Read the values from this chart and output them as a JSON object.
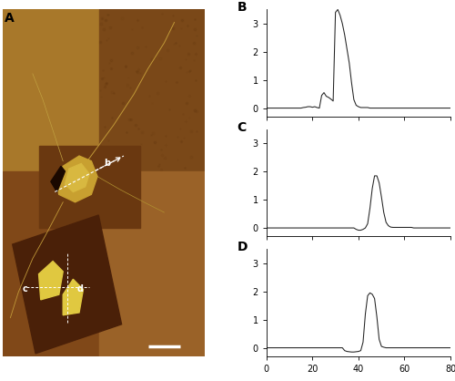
{
  "title_A": "A",
  "title_B": "B",
  "title_C": "C",
  "title_D": "D",
  "xlim": [
    0,
    80
  ],
  "ylim": [
    -0.3,
    3.5
  ],
  "yticks": [
    0,
    1,
    2,
    3
  ],
  "xticks": [
    0,
    20,
    40,
    60,
    80
  ],
  "line_color": "#222222",
  "profile_B_x": [
    0,
    1,
    2,
    3,
    4,
    5,
    6,
    7,
    8,
    9,
    10,
    11,
    12,
    13,
    14,
    15,
    16,
    17,
    18,
    19,
    20,
    21,
    22,
    23,
    24,
    25,
    26,
    27,
    28,
    29,
    30,
    31,
    32,
    33,
    34,
    35,
    36,
    37,
    38,
    39,
    40,
    41,
    42,
    43,
    44,
    45,
    46,
    47,
    48,
    49,
    50,
    51,
    52,
    53,
    54,
    55,
    56,
    57,
    58,
    59,
    60,
    61,
    62,
    63,
    64,
    65,
    66,
    67,
    68,
    69,
    70,
    71,
    72,
    73,
    74,
    75,
    76,
    77,
    78,
    79,
    80
  ],
  "profile_B_y": [
    0.0,
    0.0,
    0.0,
    0.0,
    0.0,
    0.0,
    0.0,
    0.0,
    0.0,
    0.0,
    0.0,
    0.0,
    0.0,
    0.0,
    0.0,
    0.0,
    0.02,
    0.03,
    0.05,
    0.05,
    0.03,
    0.05,
    0.02,
    0.0,
    0.45,
    0.55,
    0.42,
    0.38,
    0.32,
    0.25,
    3.4,
    3.5,
    3.3,
    3.0,
    2.6,
    2.1,
    1.6,
    0.9,
    0.3,
    0.1,
    0.05,
    0.02,
    0.02,
    0.02,
    0.02,
    0.0,
    0.0,
    0.0,
    0.0,
    0.0,
    0.0,
    0.0,
    0.0,
    0.0,
    0.0,
    0.0,
    0.0,
    0.0,
    0.0,
    0.0,
    0.0,
    0.0,
    0.0,
    0.0,
    0.0,
    0.0,
    0.0,
    0.0,
    0.0,
    0.0,
    0.0,
    0.0,
    0.0,
    0.0,
    0.0,
    0.0,
    0.0,
    0.0,
    0.0,
    0.0,
    0.0
  ],
  "profile_C_x": [
    0,
    1,
    2,
    3,
    4,
    5,
    6,
    7,
    8,
    9,
    10,
    11,
    12,
    13,
    14,
    15,
    16,
    17,
    18,
    19,
    20,
    21,
    22,
    23,
    24,
    25,
    26,
    27,
    28,
    29,
    30,
    31,
    32,
    33,
    34,
    35,
    36,
    37,
    38,
    39,
    40,
    41,
    42,
    43,
    44,
    45,
    46,
    47,
    48,
    49,
    50,
    51,
    52,
    53,
    54,
    55,
    56,
    57,
    58,
    59,
    60,
    61,
    62,
    63,
    64,
    65,
    66,
    67,
    68,
    69,
    70,
    71,
    72,
    73,
    74,
    75,
    76,
    77,
    78,
    79,
    80
  ],
  "profile_C_y": [
    0.0,
    0.0,
    0.0,
    0.0,
    0.0,
    0.0,
    0.0,
    0.0,
    0.0,
    0.0,
    0.0,
    0.0,
    0.0,
    0.0,
    0.0,
    0.0,
    0.0,
    0.0,
    0.0,
    0.0,
    0.0,
    0.0,
    0.0,
    0.0,
    0.0,
    0.0,
    0.0,
    0.0,
    0.0,
    0.0,
    0.0,
    0.0,
    0.0,
    0.0,
    0.0,
    0.0,
    0.0,
    0.0,
    0.0,
    -0.05,
    -0.08,
    -0.08,
    -0.05,
    0.0,
    0.15,
    0.7,
    1.4,
    1.85,
    1.85,
    1.6,
    1.1,
    0.55,
    0.2,
    0.08,
    0.03,
    0.02,
    0.02,
    0.02,
    0.02,
    0.02,
    0.02,
    0.02,
    0.02,
    0.02,
    0.0,
    0.0,
    0.0,
    0.0,
    0.0,
    0.0,
    0.0,
    0.0,
    0.0,
    0.0,
    0.0,
    0.0,
    0.0,
    0.0,
    0.0,
    0.0,
    0.0
  ],
  "profile_D_x": [
    0,
    1,
    2,
    3,
    4,
    5,
    6,
    7,
    8,
    9,
    10,
    11,
    12,
    13,
    14,
    15,
    16,
    17,
    18,
    19,
    20,
    21,
    22,
    23,
    24,
    25,
    26,
    27,
    28,
    29,
    30,
    31,
    32,
    33,
    34,
    35,
    36,
    37,
    38,
    39,
    40,
    41,
    42,
    43,
    44,
    45,
    46,
    47,
    48,
    49,
    50,
    51,
    52,
    53,
    54,
    55,
    56,
    57,
    58,
    59,
    60,
    61,
    62,
    63,
    64,
    65,
    66,
    67,
    68,
    69,
    70,
    71,
    72,
    73,
    74,
    75,
    76,
    77,
    78,
    79,
    80
  ],
  "profile_D_y": [
    0.0,
    0.0,
    0.0,
    0.0,
    0.0,
    0.0,
    0.0,
    0.0,
    0.0,
    0.0,
    0.0,
    0.0,
    0.0,
    0.0,
    0.0,
    0.0,
    0.0,
    0.0,
    0.0,
    0.0,
    0.0,
    0.0,
    0.0,
    0.0,
    0.0,
    0.0,
    0.0,
    0.0,
    0.0,
    0.0,
    0.0,
    0.0,
    0.0,
    0.0,
    -0.1,
    -0.13,
    -0.14,
    -0.15,
    -0.15,
    -0.14,
    -0.13,
    -0.1,
    0.2,
    1.2,
    1.85,
    1.95,
    1.9,
    1.75,
    1.1,
    0.3,
    0.05,
    0.02,
    0.0,
    0.0,
    0.0,
    0.0,
    0.0,
    0.0,
    0.0,
    0.0,
    0.0,
    0.0,
    0.0,
    0.0,
    0.0,
    0.0,
    0.0,
    0.0,
    0.0,
    0.0,
    0.0,
    0.0,
    0.0,
    0.0,
    0.0,
    0.0,
    0.0,
    0.0,
    0.0,
    0.0,
    0.0
  ],
  "afm_colors": {
    "quad_top_left": "#A8782A",
    "quad_top_right": "#7A4818",
    "quad_bot_left": "#804818",
    "quad_bot_right": "#9A6228",
    "inset_mid": "#6A3810",
    "inset_bot": "#4A2008",
    "cell_body": "#C8A030",
    "cell_body2": "#D8B840",
    "axon_color": "#C09838",
    "bright_blob": "#E0C840",
    "white": "#FFFFFF",
    "arrow_color": "#FFFFFF",
    "scalebar": "#FFFFFF"
  },
  "noise_seed": 42
}
